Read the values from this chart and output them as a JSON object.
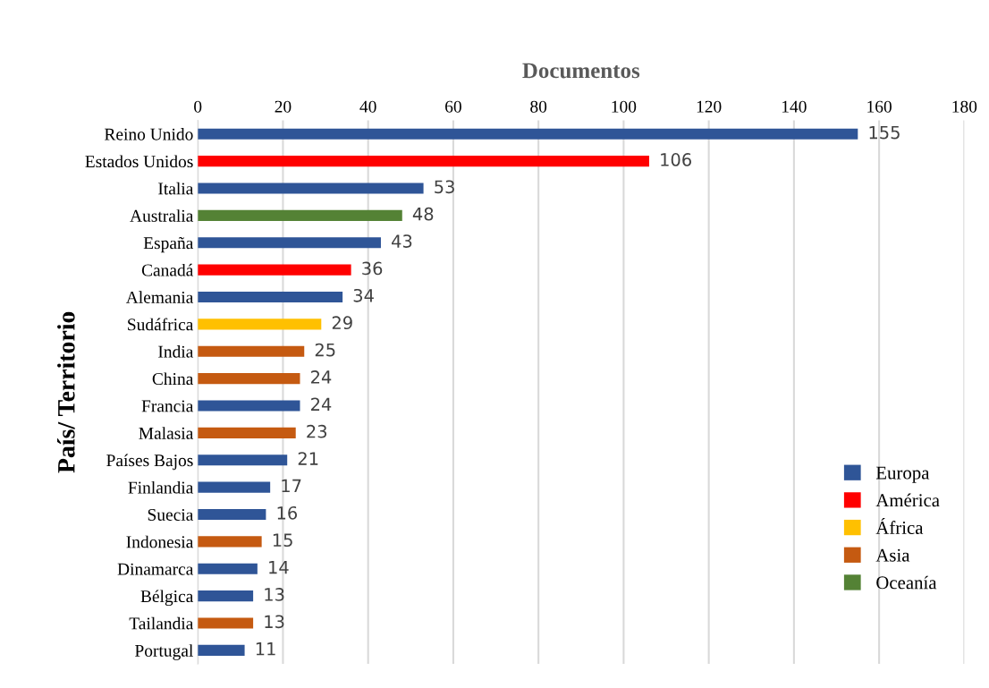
{
  "chart_data": {
    "type": "bar",
    "orientation": "horizontal",
    "xlabel": "Documentos",
    "ylabel": "País/ Territorio",
    "categories": [
      "Reino Unido",
      "Estados Unidos",
      "Italia",
      "Australia",
      "España",
      "Canadá",
      "Alemania",
      "Sudáfrica",
      "India",
      "China",
      "Francia",
      "Malasia",
      "Países Bajos",
      "Finlandia",
      "Suecia",
      "Indonesia",
      "Dinamarca",
      "Bélgica",
      "Tailandia",
      "Portugal"
    ],
    "series": [
      {
        "name": "Europa",
        "color": "#2f5597",
        "values": [
          155,
          null,
          53,
          null,
          43,
          null,
          34,
          null,
          null,
          null,
          24,
          null,
          21,
          17,
          16,
          null,
          14,
          13,
          null,
          11
        ]
      },
      {
        "name": "América",
        "color": "#ff0000",
        "values": [
          null,
          106,
          null,
          null,
          null,
          36,
          null,
          null,
          null,
          null,
          null,
          null,
          null,
          null,
          null,
          null,
          null,
          null,
          null,
          null
        ]
      },
      {
        "name": "África",
        "color": "#ffc000",
        "values": [
          null,
          null,
          null,
          null,
          null,
          null,
          null,
          29,
          null,
          null,
          null,
          null,
          null,
          null,
          null,
          null,
          null,
          null,
          null,
          null
        ]
      },
      {
        "name": "Asia",
        "color": "#c55a11",
        "values": [
          null,
          null,
          null,
          null,
          null,
          null,
          null,
          null,
          25,
          24,
          null,
          23,
          null,
          null,
          null,
          15,
          null,
          null,
          13,
          null
        ]
      },
      {
        "name": "Oceanía",
        "color": "#548235",
        "values": [
          null,
          null,
          null,
          48,
          null,
          null,
          null,
          null,
          null,
          null,
          null,
          null,
          null,
          null,
          null,
          null,
          null,
          null,
          null,
          null
        ]
      }
    ],
    "xlim": [
      0,
      180
    ],
    "xticks": [
      0,
      20,
      40,
      60,
      80,
      100,
      120,
      140,
      160,
      180
    ],
    "grid": "x",
    "legend": "bottom right",
    "data_labels": true
  }
}
